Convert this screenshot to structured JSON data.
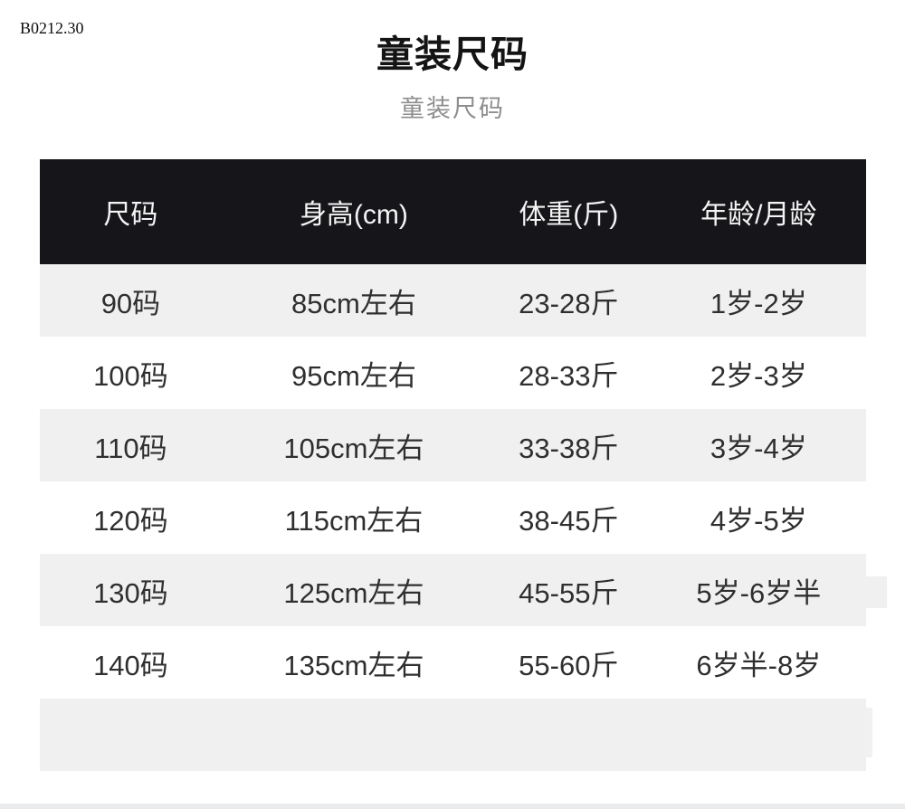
{
  "page": {
    "watermark": "B0212.30",
    "title": "童装尺码",
    "subtitle": "童装尺码"
  },
  "size_chart": {
    "columns": [
      "尺码",
      "身高(cm)",
      "体重(斤)",
      "年龄/月龄"
    ],
    "rows": [
      [
        "90码",
        "85cm左右",
        "23-28斤",
        "1岁-2岁"
      ],
      [
        "100码",
        "95cm左右",
        "28-33斤",
        "2岁-3岁"
      ],
      [
        "110码",
        "105cm左右",
        "33-38斤",
        "3岁-4岁"
      ],
      [
        "120码",
        "115cm左右",
        "38-45斤",
        "4岁-5岁"
      ],
      [
        "130码",
        "125cm左右",
        "45-55斤",
        "5岁-6岁半"
      ],
      [
        "140码",
        "135cm左右",
        "55-60斤",
        "6岁半-8岁"
      ]
    ],
    "colors": {
      "header_bg": "#16161a",
      "header_text": "#f4f4f4",
      "row_alt_bg": "#f0f0f0",
      "row_bg": "#ffffff",
      "body_text": "#2f2f2f",
      "subtitle_text": "#8e8e8e",
      "bottom_strip": "#e9ebec"
    }
  }
}
